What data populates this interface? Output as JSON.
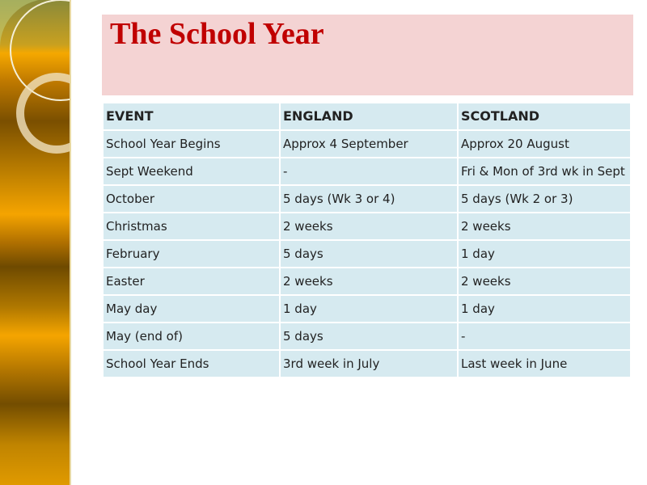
{
  "title": "The School Year",
  "table": {
    "headers": [
      "EVENT",
      "ENGLAND",
      "SCOTLAND"
    ],
    "rows": [
      [
        "School Year Begins",
        "Approx 4 September",
        "Approx 20 August"
      ],
      [
        "Sept Weekend",
        "-",
        "Fri & Mon of 3rd wk in Sept"
      ],
      [
        "October",
        "5 days (Wk 3 or 4)",
        "5 days (Wk 2 or 3)"
      ],
      [
        "Christmas",
        "2 weeks",
        "2 weeks"
      ],
      [
        "February",
        "5 days",
        "1 day"
      ],
      [
        "Easter",
        "2 weeks",
        "2 weeks"
      ],
      [
        "May day",
        "1 day",
        "1 day"
      ],
      [
        "May (end of)",
        "5 days",
        "-"
      ],
      [
        "School Year Ends",
        "3rd week in July",
        "Last week in June"
      ]
    ]
  },
  "colors": {
    "title": "#c00000",
    "title_bg": "#f4d3d3",
    "cell_bg": "#d6eaf0"
  }
}
